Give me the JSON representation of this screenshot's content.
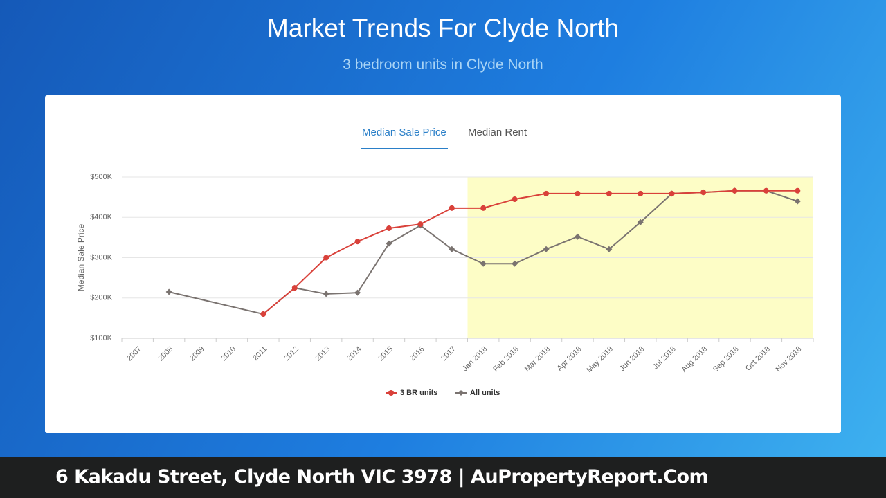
{
  "header": {
    "title": "Market Trends For Clyde North",
    "subtitle": "3 bedroom units in Clyde North"
  },
  "tabs": [
    "Median Sale Price",
    "Median Rent"
  ],
  "chart_data": {
    "type": "line",
    "y_label": "Median Sale Price",
    "categories": [
      "2007",
      "2008",
      "2009",
      "2010",
      "2011",
      "2012",
      "2013",
      "2014",
      "2015",
      "2016",
      "2017",
      "Jan 2018",
      "Feb 2018",
      "Mar 2018",
      "Apr 2018",
      "May 2018",
      "Jun 2018",
      "Jul 2018",
      "Aug 2018",
      "Sep 2018",
      "Oct 2018",
      "Nov 2018"
    ],
    "series": [
      {
        "name": "3 BR units",
        "color": "#d9413a",
        "marker": "circle",
        "values": [
          null,
          null,
          null,
          null,
          160000,
          225000,
          300000,
          340000,
          373000,
          383000,
          423000,
          423000,
          445000,
          459000,
          459000,
          459000,
          459000,
          459000,
          462000,
          466000,
          466000,
          466000
        ]
      },
      {
        "name": "All units",
        "color": "#7a7370",
        "marker": "diamond",
        "values": [
          null,
          215000,
          null,
          null,
          160000,
          225000,
          210000,
          213000,
          335000,
          380000,
          321000,
          285000,
          285000,
          321000,
          352000,
          321000,
          388000,
          459000,
          462000,
          466000,
          466000,
          440000
        ]
      }
    ],
    "ylim": [
      100000,
      500000
    ],
    "yticks": [
      {
        "value": 100000,
        "label": "$100K"
      },
      {
        "value": 200000,
        "label": "$200K"
      },
      {
        "value": 300000,
        "label": "$300K"
      },
      {
        "value": 400000,
        "label": "$400K"
      },
      {
        "value": 500000,
        "label": "$500K"
      }
    ],
    "grid": true,
    "connect_gaps": true,
    "legend": "bottom"
  },
  "footer": {
    "text": "6 Kakadu Street, Clyde North VIC 3978 | AuPropertyReport.Com"
  }
}
